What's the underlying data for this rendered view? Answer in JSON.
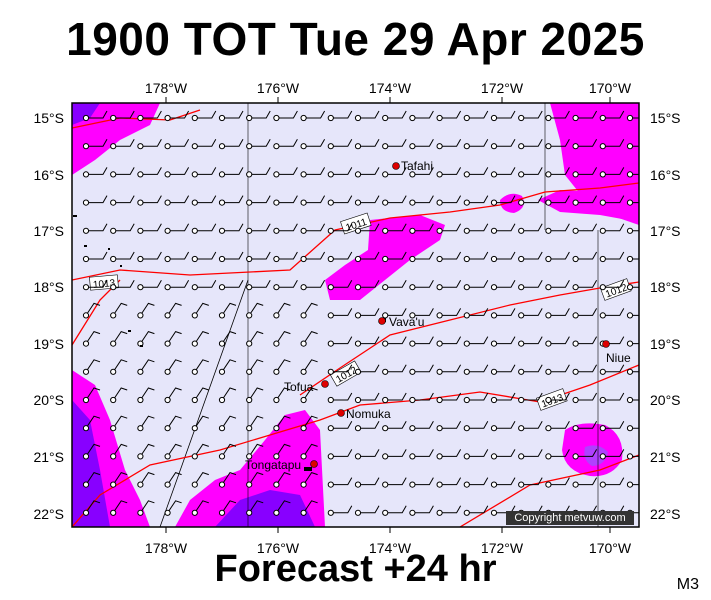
{
  "title": "1900 TOT Tue 29 Apr 2025",
  "subtitle": "Forecast +24 hr",
  "model_tag": "M3",
  "copyright": "Copyright metvuw.com",
  "colors": {
    "ocean": "#e6e6fa",
    "rain_light": "#ff00ff",
    "rain_heavy": "#8800ff",
    "isobar": "#ff0000",
    "city": "#dd0000"
  },
  "axes": {
    "lon_labels": [
      "178°W",
      "176°W",
      "174°W",
      "172°W",
      "170°W"
    ],
    "lat_labels": [
      "15°S",
      "16°S",
      "17°S",
      "18°S",
      "19°S",
      "20°S",
      "21°S",
      "22°S"
    ]
  },
  "isobar_labels": [
    "1011",
    "1013",
    "1012",
    "1012",
    "1013"
  ],
  "places": [
    "Tafahi",
    "Vava'u",
    "Niue",
    "Tofua",
    "Nomuka",
    "Tongatapu"
  ]
}
